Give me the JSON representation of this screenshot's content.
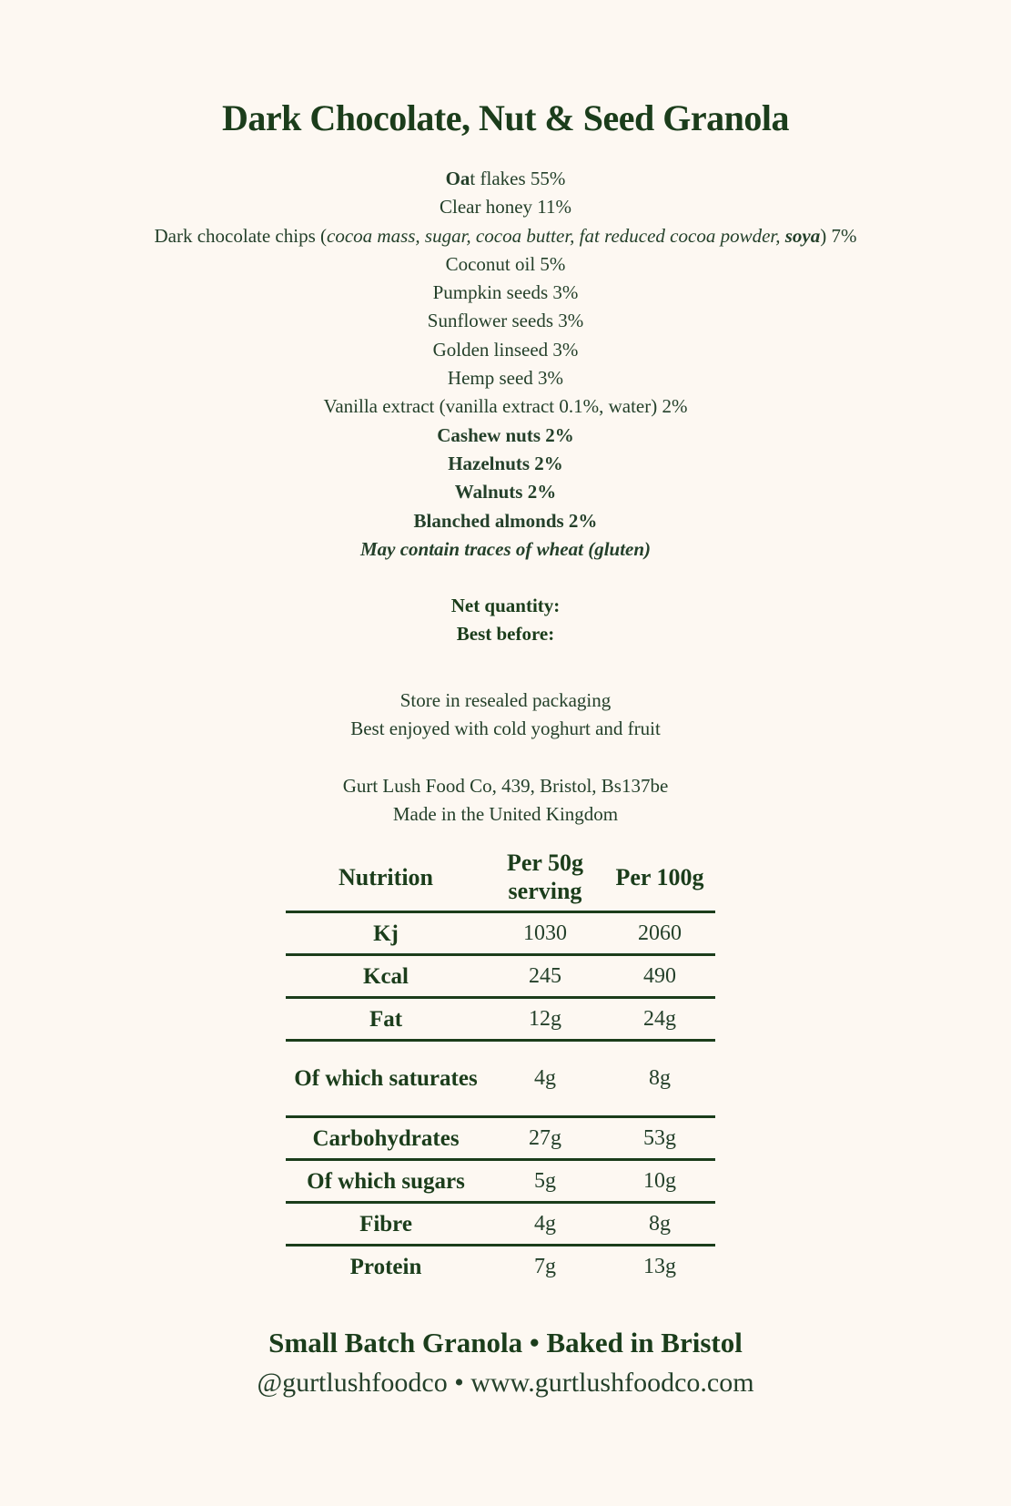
{
  "title": "Dark Chocolate, Nut & Seed Granola",
  "colors": {
    "text": "#1b3d1b",
    "background": "#fdf8f2"
  },
  "ingredients": {
    "oat_bold": "Oa",
    "oat_rest": "t flakes 55%",
    "honey": "Clear honey 11%",
    "choc_prefix": "Dark chocolate chips (",
    "choc_italic": "cocoa mass, sugar, cocoa butter, fat reduced cocoa powder, ",
    "choc_allergen": "soya",
    "choc_suffix": ") 7%",
    "coconut": "Coconut oil 5%",
    "pumpkin": "Pumpkin seeds 3%",
    "sunflower": "Sunflower seeds 3%",
    "linseed": "Golden linseed 3%",
    "hemp": "Hemp seed 3%",
    "vanilla": "Vanilla extract (vanilla extract 0.1%, water) 2%",
    "cashew": "Cashew nuts 2%",
    "hazelnuts": "Hazelnuts 2%",
    "walnuts": "Walnuts 2%",
    "almonds": "Blanched almonds 2%",
    "may_contain": "May contain traces of wheat (gluten)"
  },
  "net_quantity_label": "Net quantity:",
  "best_before_label": "Best before:",
  "storage": "Store in resealed packaging",
  "serving_tip": "Best enjoyed with cold yoghurt and fruit",
  "address": "Gurt Lush Food Co, 439, Bristol, Bs137be",
  "origin": "Made in the United Kingdom",
  "nutrition": {
    "headers": [
      "Nutrition",
      "Per 50g serving",
      "Per 100g"
    ],
    "rows": [
      {
        "label": "Kj",
        "per_serving": "1030",
        "per_100g": "2060"
      },
      {
        "label": "Kcal",
        "per_serving": "245",
        "per_100g": "490"
      },
      {
        "label": "Fat",
        "per_serving": "12g",
        "per_100g": "24g"
      },
      {
        "label": "Of which saturates",
        "per_serving": "4g",
        "per_100g": "8g"
      },
      {
        "label": "Carbohydrates",
        "per_serving": "27g",
        "per_100g": "53g"
      },
      {
        "label": "Of which sugars",
        "per_serving": "5g",
        "per_100g": "10g"
      },
      {
        "label": "Fibre",
        "per_serving": "4g",
        "per_100g": "8g"
      },
      {
        "label": "Protein",
        "per_serving": "7g",
        "per_100g": "13g"
      }
    ]
  },
  "footer": {
    "tagline": "Small Batch Granola • Baked in Bristol",
    "contact": "@gurtlushfoodco • www.gurtlushfoodco.com"
  }
}
